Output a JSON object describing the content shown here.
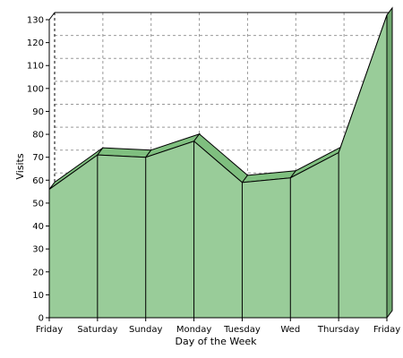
{
  "chart_data": {
    "type": "area",
    "categories": [
      "Friday",
      "Saturday",
      "Sunday",
      "Monday",
      "Tuesday",
      "Wed",
      "Thursday",
      "Friday"
    ],
    "series": [
      {
        "values": [
          56,
          71,
          70,
          77,
          59,
          61,
          72,
          132
        ]
      }
    ],
    "xlabel": "Day of the Week",
    "ylabel": "Visits",
    "ylim": [
      0,
      130
    ],
    "yticks": [
      0,
      10,
      20,
      30,
      40,
      50,
      60,
      70,
      80,
      90,
      100,
      110,
      120,
      130
    ],
    "grid": true,
    "three_d": true,
    "colors": {
      "fill": "#99cc99",
      "fill_top": "#7fbf7f",
      "fill_side": "#6fa86f",
      "stroke": "#000000",
      "grid": "#999999"
    }
  }
}
